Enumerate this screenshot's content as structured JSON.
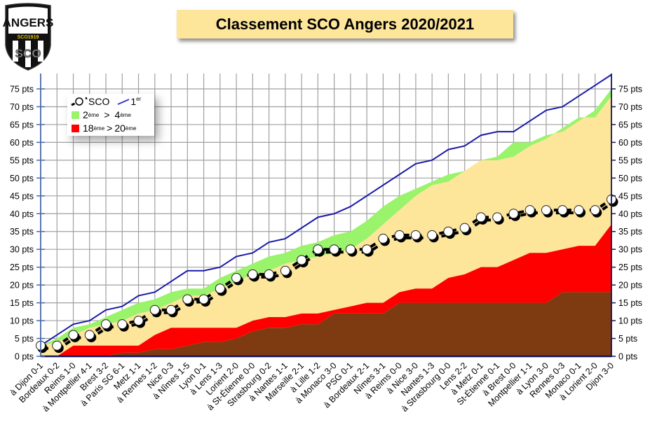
{
  "title": "Classement SCO Angers 2020/2021",
  "logo": {
    "top_text": "ANGERS",
    "band_text": "SCO1919",
    "bottom_text": "SCO"
  },
  "legend": {
    "sco": "SCO",
    "first_base": "1",
    "first_sup": "er",
    "green_from": "2",
    "green_from_sup": "ème",
    "green_sep": ">",
    "green_to": "4",
    "green_to_sup": "ème",
    "red_from": "18",
    "red_from_sup": "ème",
    "red_sep": ">",
    "red_to": "20",
    "red_to_sup": "ème"
  },
  "colors": {
    "first": "#1a1aa8",
    "green": "#99f36b",
    "tan": "#fde59a",
    "red": "#ff0000",
    "brown": "#7e3a10",
    "sco_line": "#000000",
    "grid": "#a0a0a0",
    "axis": "#14145a"
  },
  "chart_data": {
    "type": "area",
    "title": "Classement SCO Angers 2020/2021",
    "xlabel": "",
    "ylabel": "",
    "ylim": [
      0,
      75
    ],
    "ytick_step": 5,
    "ytick_suffix": " pts",
    "grid": true,
    "legend_position": "top-left",
    "categories": [
      "à Dijon 0-1",
      "Bordeaux 0-2",
      "Reims 1-0",
      "à Montpellier 4-1",
      "Brest 3-2",
      "à Paris SG 6-1",
      "Metz 1-1",
      "à Rennes 1-2",
      "Nice 0-3",
      "à Nîmes 1-5",
      "Lyon 0-1",
      "à Lens 1-3",
      "Lorient 2-0",
      "à St-Étienne 0-0",
      "Strasbourg 0-2",
      "à Nantes 1-1",
      "Marseille 2-1",
      "à Lille 1-2",
      "à Monaco 3-0",
      "PSG 0-1",
      "à Bordeaux 2-1",
      "Nîmes 3-1",
      "à Reims 0-0",
      "à Nice 3-0",
      "Nantes 1-3",
      "à Strasbourg 0-0",
      "Lens 2-2",
      "à Metz 0-1",
      "St-Étienne 0-1",
      "à Brest 0-0",
      "Montpellier 1-1",
      "à Lyon 3-0",
      "Rennes 0-3",
      "Monaco 0-1",
      "à Lorient 2-0",
      "Dijon 3-0"
    ],
    "series": [
      {
        "name": "SCO",
        "type": "line-markers",
        "values": [
          3,
          3,
          6,
          6,
          9,
          9,
          10,
          13,
          13,
          16,
          16,
          19,
          22,
          23,
          23,
          24,
          27,
          30,
          30,
          30,
          30,
          33,
          34,
          34,
          34,
          35,
          36,
          39,
          39,
          40,
          41,
          41,
          41,
          41,
          41,
          44
        ]
      },
      {
        "name": "1er",
        "type": "line",
        "values": [
          3,
          6,
          9,
          10,
          13,
          14,
          17,
          18,
          21,
          24,
          24,
          25,
          28,
          29,
          32,
          33,
          36,
          39,
          40,
          42,
          45,
          48,
          51,
          54,
          55,
          58,
          59,
          62,
          63,
          63,
          66,
          69,
          70,
          73,
          76,
          79
        ]
      },
      {
        "name": "2ème",
        "type": "band-top",
        "values": [
          3,
          5,
          8,
          9,
          11,
          13,
          15,
          16,
          18,
          19,
          19,
          22,
          24,
          26,
          28,
          29,
          31,
          32,
          34,
          35,
          38,
          42,
          45,
          47,
          49,
          51,
          52,
          55,
          56,
          60,
          60,
          62,
          63,
          66,
          69,
          75
        ]
      },
      {
        "name": "4ème",
        "type": "band-bottom",
        "values": [
          3,
          4,
          6,
          8,
          9,
          10,
          12,
          13,
          15,
          17,
          17,
          19,
          21,
          23,
          24,
          26,
          27,
          28,
          29,
          30,
          33,
          37,
          41,
          45,
          48,
          49,
          52,
          55,
          55,
          56,
          59,
          61,
          64,
          67,
          67,
          73
        ]
      },
      {
        "name": "18ème",
        "type": "band-top",
        "values": [
          0,
          0,
          3,
          3,
          3,
          3,
          3,
          6,
          8,
          8,
          8,
          8,
          8,
          10,
          11,
          11,
          12,
          12,
          13,
          14,
          15,
          15,
          18,
          19,
          19,
          22,
          23,
          25,
          25,
          27,
          29,
          29,
          30,
          31,
          31,
          37
        ]
      },
      {
        "name": "20ème",
        "type": "band-bottom",
        "values": [
          0,
          0,
          0,
          0,
          0,
          1,
          1,
          2,
          2,
          3,
          4,
          4,
          5,
          7,
          8,
          8,
          9,
          9,
          12,
          12,
          12,
          12,
          15,
          15,
          15,
          15,
          15,
          15,
          15,
          15,
          15,
          15,
          18,
          18,
          18,
          18
        ]
      }
    ]
  }
}
